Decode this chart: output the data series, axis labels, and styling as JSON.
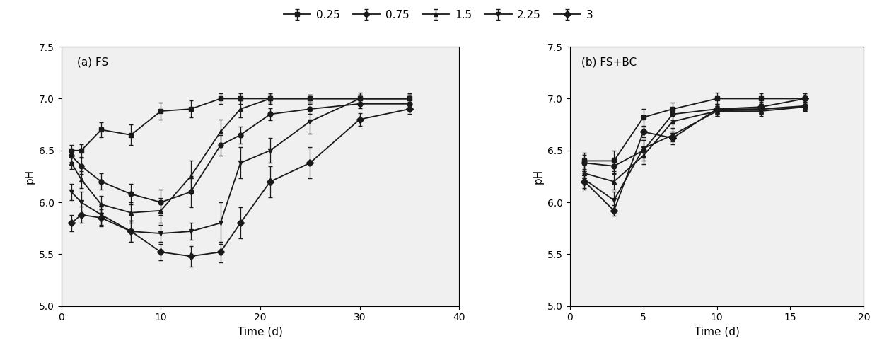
{
  "panel_a_title": "(a) FS",
  "panel_b_title": "(b) FS+BC",
  "xlabel": "Time (d)",
  "ylabel": "pH",
  "ylim": [
    5.0,
    7.5
  ],
  "xlim_a": [
    0,
    40
  ],
  "xlim_b": [
    0,
    20
  ],
  "xticks_a": [
    0,
    10,
    20,
    30,
    40
  ],
  "xticks_b": [
    0,
    5,
    10,
    15,
    20
  ],
  "yticks": [
    5.0,
    5.5,
    6.0,
    6.5,
    7.0,
    7.5
  ],
  "legend_labels": [
    "0.25",
    "0.75",
    "1.5",
    "2.25",
    "3"
  ],
  "series": {
    "s025": {
      "marker": "s",
      "label": "0.25",
      "a_x": [
        1,
        2,
        4,
        7,
        10,
        13,
        16,
        18,
        21,
        25,
        30,
        35
      ],
      "a_y": [
        6.5,
        6.5,
        6.7,
        6.65,
        6.88,
        6.9,
        7.0,
        7.0,
        7.0,
        7.0,
        7.0,
        7.0
      ],
      "a_err": [
        0.05,
        0.06,
        0.07,
        0.1,
        0.08,
        0.08,
        0.05,
        0.05,
        0.04,
        0.04,
        0.04,
        0.04
      ],
      "b_x": [
        1,
        3,
        5,
        7,
        10,
        13,
        16
      ],
      "b_y": [
        6.4,
        6.4,
        6.82,
        6.9,
        7.0,
        7.0,
        7.0
      ],
      "b_err": [
        0.08,
        0.1,
        0.08,
        0.06,
        0.06,
        0.05,
        0.05
      ]
    },
    "s075": {
      "marker": "o",
      "label": "0.75",
      "a_x": [
        1,
        2,
        4,
        7,
        10,
        13,
        16,
        18,
        21,
        25,
        30,
        35
      ],
      "a_y": [
        6.45,
        6.35,
        6.2,
        6.08,
        6.0,
        6.1,
        6.55,
        6.65,
        6.85,
        6.9,
        6.95,
        6.95
      ],
      "a_err": [
        0.06,
        0.08,
        0.08,
        0.1,
        0.12,
        0.15,
        0.1,
        0.08,
        0.06,
        0.05,
        0.04,
        0.04
      ],
      "b_x": [
        1,
        3,
        5,
        7,
        10,
        13,
        16
      ],
      "b_y": [
        6.38,
        6.35,
        6.5,
        6.85,
        6.9,
        6.9,
        6.93
      ],
      "b_err": [
        0.08,
        0.08,
        0.1,
        0.06,
        0.05,
        0.05,
        0.04
      ]
    },
    "s15": {
      "marker": "^",
      "label": "1.5",
      "a_x": [
        1,
        2,
        4,
        7,
        10,
        13,
        16,
        18,
        21,
        25,
        30,
        35
      ],
      "a_y": [
        6.38,
        6.22,
        5.98,
        5.9,
        5.92,
        6.25,
        6.68,
        6.9,
        7.0,
        7.0,
        7.0,
        7.0
      ],
      "a_err": [
        0.06,
        0.08,
        0.08,
        0.1,
        0.12,
        0.15,
        0.12,
        0.08,
        0.05,
        0.04,
        0.04,
        0.04
      ],
      "b_x": [
        1,
        3,
        5,
        7,
        10,
        13,
        16
      ],
      "b_y": [
        6.28,
        6.2,
        6.45,
        6.78,
        6.88,
        6.88,
        6.92
      ],
      "b_err": [
        0.08,
        0.08,
        0.08,
        0.06,
        0.05,
        0.05,
        0.04
      ]
    },
    "s225": {
      "marker": "v",
      "label": "2.25",
      "a_x": [
        1,
        2,
        4,
        7,
        10,
        13,
        16,
        18,
        21,
        25,
        30,
        35
      ],
      "a_y": [
        6.1,
        6.0,
        5.88,
        5.72,
        5.7,
        5.72,
        5.8,
        6.38,
        6.5,
        6.78,
        7.0,
        7.0
      ],
      "a_err": [
        0.08,
        0.1,
        0.1,
        0.1,
        0.08,
        0.08,
        0.2,
        0.15,
        0.12,
        0.12,
        0.06,
        0.05
      ],
      "b_x": [
        1,
        3,
        5,
        7,
        10,
        13,
        16
      ],
      "b_y": [
        6.22,
        6.02,
        6.52,
        6.65,
        6.88,
        6.9,
        6.92
      ],
      "b_err": [
        0.08,
        0.08,
        0.08,
        0.06,
        0.05,
        0.05,
        0.04
      ]
    },
    "s3": {
      "marker": "D",
      "label": "3",
      "a_x": [
        1,
        2,
        4,
        7,
        10,
        13,
        16,
        18,
        21,
        25,
        30,
        35
      ],
      "a_y": [
        5.8,
        5.88,
        5.85,
        5.72,
        5.52,
        5.48,
        5.52,
        5.8,
        6.2,
        6.38,
        6.8,
        6.9
      ],
      "a_err": [
        0.08,
        0.08,
        0.08,
        0.1,
        0.08,
        0.1,
        0.1,
        0.15,
        0.15,
        0.15,
        0.06,
        0.05
      ],
      "b_x": [
        1,
        3,
        5,
        7,
        10,
        13,
        16
      ],
      "b_y": [
        6.2,
        5.92,
        6.68,
        6.62,
        6.9,
        6.92,
        7.0
      ],
      "b_err": [
        0.08,
        0.05,
        0.05,
        0.06,
        0.05,
        0.05,
        0.04
      ]
    }
  },
  "line_color": "#1a1a1a",
  "marker_size": 5,
  "linewidth": 1.3,
  "capsize": 2,
  "elinewidth": 0.9,
  "bg_color": "#f0f0f0"
}
